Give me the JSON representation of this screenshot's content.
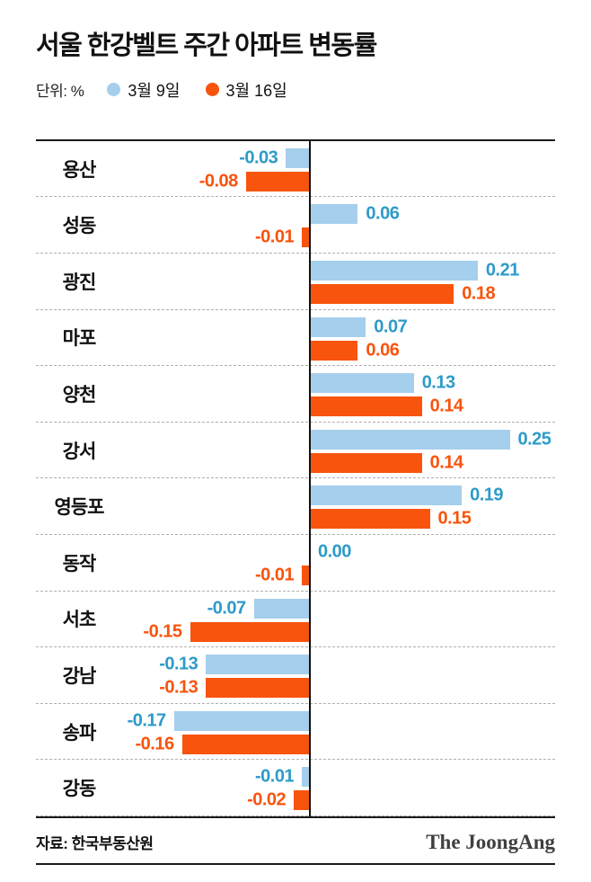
{
  "header": {
    "title": "서울 한강벨트 주간 아파트 변동률",
    "unit_label": "단위: %"
  },
  "legend": [
    {
      "label": "3월 9일",
      "color": "#a5cfec"
    },
    {
      "label": "3월 16일",
      "color": "#f8540d"
    }
  ],
  "chart_data": {
    "type": "bar",
    "orientation": "horizontal",
    "title": "서울 한강벨트 주간 아파트 변동률",
    "unit": "%",
    "categories": [
      "용산",
      "성동",
      "광진",
      "마포",
      "양천",
      "강서",
      "영등포",
      "동작",
      "서초",
      "강남",
      "송파",
      "강동"
    ],
    "series": [
      {
        "name": "3월 9일",
        "color": "#a5cfec",
        "label_color": "#2e9bc8",
        "values": [
          -0.03,
          0.06,
          0.21,
          0.07,
          0.13,
          0.25,
          0.19,
          0.0,
          -0.07,
          -0.13,
          -0.17,
          -0.01
        ]
      },
      {
        "name": "3월 16일",
        "color": "#f8540d",
        "label_color": "#f8540d",
        "values": [
          -0.08,
          -0.01,
          0.18,
          0.06,
          0.14,
          0.14,
          0.15,
          -0.01,
          -0.15,
          -0.13,
          -0.16,
          -0.02
        ]
      }
    ],
    "xlim": [
      -0.25,
      0.3
    ],
    "value_format": "0.00",
    "grid": "dashed-row-separators",
    "legend_position": "top",
    "zero_axis": true
  },
  "footer": {
    "source": "자료: 한국부동산원",
    "brand": "The JoongAng"
  }
}
